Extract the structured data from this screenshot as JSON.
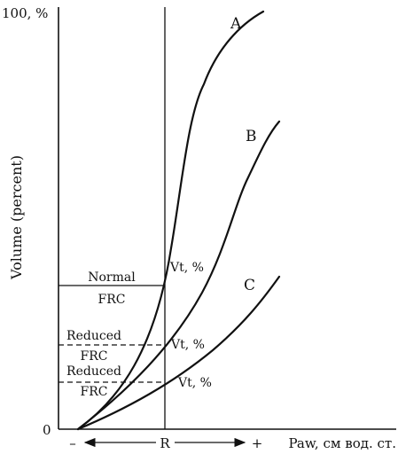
{
  "y_axis": {
    "title": "Volume (percent)",
    "top_label": "100, %",
    "zero_label": "0"
  },
  "x_axis": {
    "title": "Paw, см вод. ст.",
    "minus": "–",
    "center": "R",
    "plus": "+"
  },
  "curves": [
    {
      "label": "A"
    },
    {
      "label": "B"
    },
    {
      "label": "C"
    }
  ],
  "frc_levels": [
    {
      "label_line1": "Normal",
      "label_line2": "FRC",
      "vt_label": "Vt, %",
      "style": "solid"
    },
    {
      "label_line1": "Reduced",
      "label_line2": "FRC",
      "vt_label": "Vt, %",
      "style": "dashed"
    },
    {
      "label_line1": "Reduced",
      "label_line2": "FRC",
      "vt_label": "Vt, %",
      "style": "dashed"
    }
  ]
}
